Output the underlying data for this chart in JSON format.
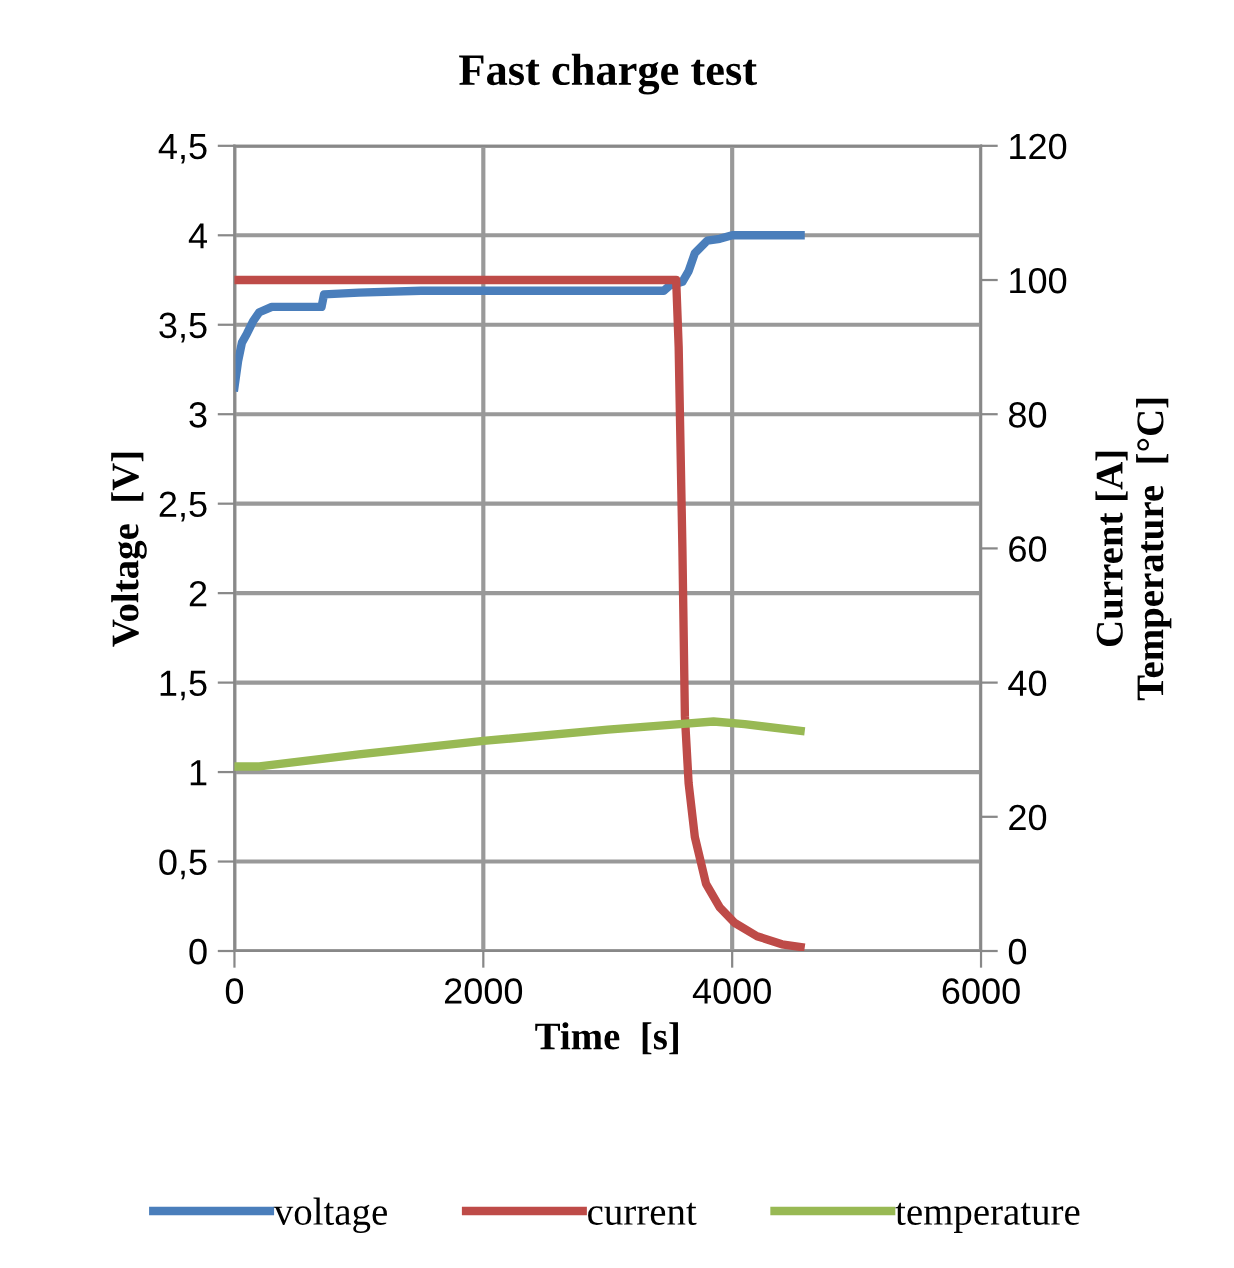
{
  "chart_data": {
    "type": "line",
    "title": "Fast charge test",
    "xlabel": "Time  [s]",
    "ylabel": "Voltage  [V]",
    "y2label": "Current [A]\nTemperature  [°C]",
    "xlim": [
      0,
      6000
    ],
    "xticks": [
      0,
      2000,
      4000,
      6000
    ],
    "ylim": [
      0,
      4.5
    ],
    "yticks": [
      0,
      {
        "value": 0.5,
        "label": "0,5"
      },
      1,
      {
        "value": 1.5,
        "label": "1,5"
      },
      2,
      {
        "value": 2.5,
        "label": "2,5"
      },
      3,
      {
        "value": 3.5,
        "label": "3,5"
      },
      4,
      {
        "value": 4.5,
        "label": "4,5"
      }
    ],
    "y2lim": [
      0,
      120
    ],
    "y2ticks": [
      0,
      20,
      40,
      60,
      80,
      100,
      120
    ],
    "grid": true,
    "legend": "bottom",
    "line_style": "solid",
    "marker": "none",
    "series": [
      {
        "name": "voltage",
        "color": "#4a7ebb",
        "x": [
          0,
          30,
          60,
          100,
          150,
          200,
          300,
          700,
          720,
          1000,
          1500,
          2000,
          2500,
          3000,
          3450,
          3500,
          3600,
          3650,
          3700,
          3800,
          3900,
          4000,
          4200,
          4400,
          4550
        ],
        "values": [
          3.15,
          3.3,
          3.4,
          3.45,
          3.52,
          3.57,
          3.6,
          3.6,
          3.67,
          3.68,
          3.69,
          3.69,
          3.69,
          3.69,
          3.69,
          3.72,
          3.74,
          3.8,
          3.9,
          3.97,
          3.98,
          4.0,
          4.0,
          4.0,
          4.0
        ]
      },
      {
        "name": "current",
        "color": "#be4b48",
        "axis": "y2",
        "x": [
          0,
          1000,
          2000,
          3000,
          3550,
          3570,
          3600,
          3620,
          3650,
          3700,
          3790,
          3900,
          4020,
          4200,
          4400,
          4550
        ],
        "values": [
          100,
          100,
          100,
          100,
          100,
          90,
          60,
          35,
          25,
          17,
          10,
          6.5,
          4.2,
          2.2,
          1,
          0.6
        ]
      },
      {
        "name": "temperature",
        "color": "#98b954",
        "axis": "y2",
        "x": [
          0,
          200,
          1000,
          2000,
          3000,
          3500,
          3850,
          4100,
          4550
        ],
        "values": [
          27.5,
          27.5,
          29.3,
          31.3,
          33,
          33.7,
          34.2,
          33.8,
          32.8
        ]
      }
    ]
  }
}
